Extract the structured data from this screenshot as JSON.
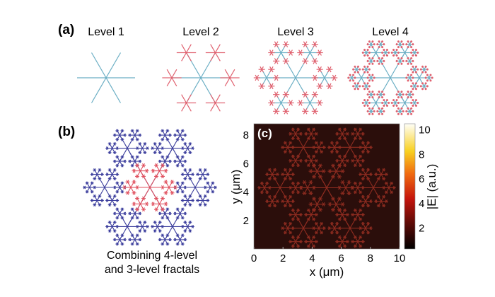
{
  "panel_a": {
    "label": "(a)",
    "levels": [
      {
        "title": "Level  1",
        "level": 1
      },
      {
        "title": "Level  2",
        "level": 2
      },
      {
        "title": "Level  3",
        "level": 3
      },
      {
        "title": "Level  4",
        "level": 4
      }
    ],
    "colors": {
      "branch": "#6aaec4",
      "tip": "#e0606e"
    }
  },
  "panel_b": {
    "label": "(b)",
    "caption_line1": "Combining 4-level",
    "caption_line2": "and 3-level fractals",
    "colors": {
      "outer": "#3b3d9c",
      "inner": "#e0505e"
    }
  },
  "chart_data": {
    "type": "heatmap",
    "label": "(c)",
    "xlabel": "x (μm)",
    "ylabel": "y (μm)",
    "colorbar_label": "|E| (a.u.)",
    "xlim": [
      0,
      10
    ],
    "ylim": [
      0,
      8.8
    ],
    "xticks": [
      "0",
      "2",
      "4",
      "6",
      "8",
      "10"
    ],
    "yticks": [
      "2",
      "4",
      "6",
      "8"
    ],
    "colorbar_range": [
      0.3,
      10.5
    ],
    "colorbar_ticks": [
      "2",
      "4",
      "6",
      "8",
      "10"
    ],
    "colormap": "hot",
    "background_value_color": "#2b0e0b",
    "pattern_color": "#8e2c20"
  }
}
